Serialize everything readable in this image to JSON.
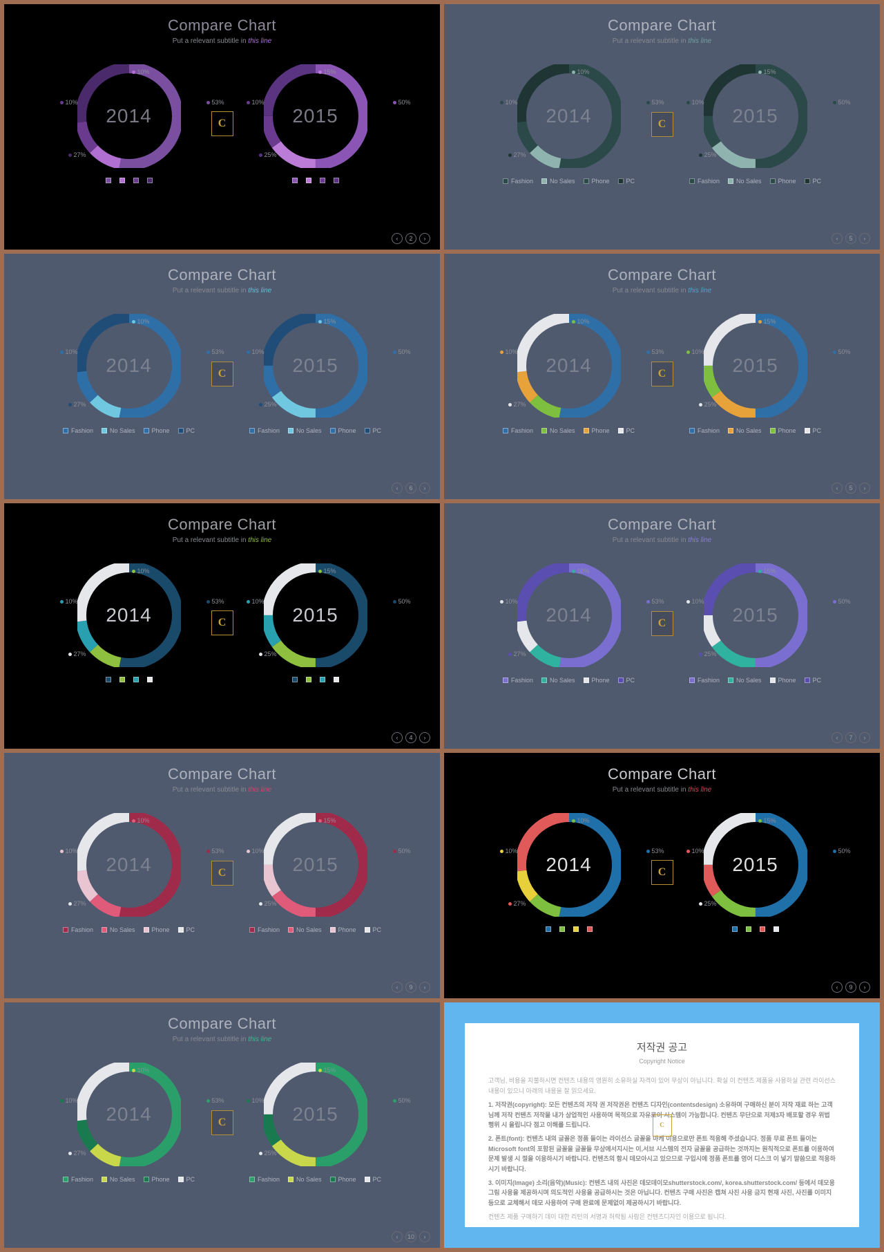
{
  "title": "Compare Chart",
  "subtitle_a": "Put a relevant subtitle in ",
  "subtitle_b": "this line",
  "years": [
    "2014",
    "2015"
  ],
  "data2014": {
    "values": [
      53,
      10,
      10,
      27
    ],
    "labels": [
      "53%",
      "10%",
      "10%",
      "27%"
    ]
  },
  "data2015": {
    "values": [
      50,
      15,
      10,
      25
    ],
    "labels": [
      "50%",
      "15%",
      "10%",
      "25%"
    ]
  },
  "legend": [
    "Fashion",
    "No Sales",
    "Phone",
    "PC"
  ],
  "slides": [
    {
      "bg": "#000000",
      "txt": "#8e8a9a",
      "sub_b": "#a976c9",
      "yr": "#7b7985",
      "colors2014": [
        "#7a4fa0",
        "#b06fd1",
        "#6a3a8e",
        "#4a2a6a"
      ],
      "colors2015": [
        "#8a55b5",
        "#bb7cd8",
        "#6a3a8e",
        "#5a3480"
      ],
      "legend_labels": false,
      "page": "2"
    },
    {
      "bg": "#505a6f",
      "txt": "#aeb2bc",
      "sub_b": "#72a0a3",
      "yr": "#7c8290",
      "colors2014": [
        "#2b4948",
        "#8fb3ae",
        "#2b4948",
        "#1e3534"
      ],
      "colors2015": [
        "#2b4948",
        "#8fb3ae",
        "#2b4948",
        "#1e3534"
      ],
      "legend_labels": true,
      "page": "5"
    },
    {
      "bg": "#505a6f",
      "txt": "#aeb2bc",
      "sub_b": "#6fb9d8",
      "yr": "#7c8290",
      "colors2014": [
        "#2f6fa8",
        "#6fc7e0",
        "#2f6fa8",
        "#1f4d78"
      ],
      "colors2015": [
        "#2f6fa8",
        "#6fc7e0",
        "#2f6fa8",
        "#1f4d78"
      ],
      "legend_labels": true,
      "page": "6"
    },
    {
      "bg": "#505a6f",
      "txt": "#aeb2bc",
      "sub_b": "#4aa5c9",
      "yr": "#7c8290",
      "colors2014": [
        "#2f6fa8",
        "#7fbf3f",
        "#e8a23a",
        "#e5e7ea"
      ],
      "colors2015": [
        "#2f6fa8",
        "#e8a23a",
        "#7fbf3f",
        "#e5e7ea"
      ],
      "legend_labels": true,
      "page": "5"
    },
    {
      "bg": "#000000",
      "txt": "#9ea0a6",
      "sub_b": "#8fb747",
      "yr": "#c9cbd0",
      "colors2014": [
        "#1a4a6a",
        "#8fbf3f",
        "#28a0b0",
        "#e5e7ea"
      ],
      "colors2015": [
        "#1a4a6a",
        "#8fbf3f",
        "#28a0b0",
        "#e5e7ea"
      ],
      "legend_labels": false,
      "page": "4"
    },
    {
      "bg": "#505a6f",
      "txt": "#aeb2bc",
      "sub_b": "#8a7fd6",
      "yr": "#7c8290",
      "colors2014": [
        "#7a6fd0",
        "#2fb3a0",
        "#e5e7ea",
        "#5a4fb0"
      ],
      "colors2015": [
        "#7a6fd0",
        "#2fb3a0",
        "#e5e7ea",
        "#5a4fb0"
      ],
      "legend_labels": true,
      "page": "7"
    },
    {
      "bg": "#505a6f",
      "txt": "#aeb2bc",
      "sub_b": "#c94a6a",
      "yr": "#7c8290",
      "colors2014": [
        "#a02a4a",
        "#e05a7a",
        "#e8c5d0",
        "#e5e7ea"
      ],
      "colors2015": [
        "#a02a4a",
        "#e05a7a",
        "#e8c5d0",
        "#e5e7ea"
      ],
      "legend_labels": true,
      "page": "9"
    },
    {
      "bg": "#000000",
      "txt": "#c9cbd0",
      "sub_b": "#d04a5a",
      "yr": "#e0e0e0",
      "colors2014": [
        "#1f6fa8",
        "#7fbf3f",
        "#e8d03a",
        "#e05a5a"
      ],
      "colors2015": [
        "#1f6fa8",
        "#7fbf3f",
        "#e05a5a",
        "#e5e7ea"
      ],
      "legend_labels": false,
      "page": "9"
    },
    {
      "bg": "#505a6f",
      "txt": "#aeb2bc",
      "sub_b": "#4ab38f",
      "yr": "#7c8290",
      "colors2014": [
        "#2a9f6a",
        "#c9d84a",
        "#1a7a4f",
        "#e5e7ea"
      ],
      "colors2015": [
        "#2a9f6a",
        "#c9d84a",
        "#1a7a4f",
        "#e5e7ea"
      ],
      "legend_labels": true,
      "page": "10"
    }
  ],
  "notice": {
    "title": "저작권 공고",
    "sub": "Copyright Notice",
    "p0": "고객님, 비용을 지불하시면 컨텐츠 내용의 영원히 소유하실 자격이 있어 무상이 아닙니다. 확실 이 컨텐츠 제품을 사용하실 관련 라이선스 내용이 있으니 아래의 내용을 잘 읽으세요.",
    "p1": "1. 저작권(copyright): 모든 컨텐츠의 저작 권 저작권은 컨텐츠 디자인(contentsdesign) 소유하며 구매하신 분이 저작 재료 하는 고객님께 저작 컨텐츠 저작물 내가 상업적인 사용하며 목적으로 자유로이 시스템이 가능합니다. 컨텐츠 무단으로 저제3자 배포할 경우 위법 행위 시 올립니다 점고 이해를 드립니다.",
    "p2": "2. 폰트(font): 컨텐츠 내의 글꼴은 정품 들이는 라이선스 글꼴을 마케 이용으로만 폰트 적용해 주셨습니다. 정품 무료 폰트 들이는 Microsoft font의 포함된 글꼴을 글꼴들 무상에서지시는 이,서브 시스템의 전자 글꼴을 공급하는 것까지는 원칙적으로 폰트를 이용하여 문제 발생 시 절을 이용하시기 바랍니다. 컨텐츠의 항시 데모아시고 있으므로 구입시에 정품 폰트를 영어 디스크 이 넣기 말씀으로 적용하시기 바랍니다.",
    "p3": "3. 이미지(Image) 소리(음악)(Music): 컨텐츠 내의 사진은 데모데이모shutterstock.com/, korea.shutterstock.com/ 등에서 데모용 그림 사용을 제공하시며 의도적인 사용을 공급하시는 것은 아닙니다. 컨텐츠 구매 사진은 캡쳐 사진 사용 금지 현재 사진, 사진를 이미지 등으로 교체해서 데모 사용하여 구매 완료에 문제없이 제공하시기 바랍니다.",
    "p4": "컨텐츠 제품 구매하기 데이 대한 리턴의 서명과 허락됨 사람은 컨텐츠디자인 이용으로 됩니다."
  }
}
